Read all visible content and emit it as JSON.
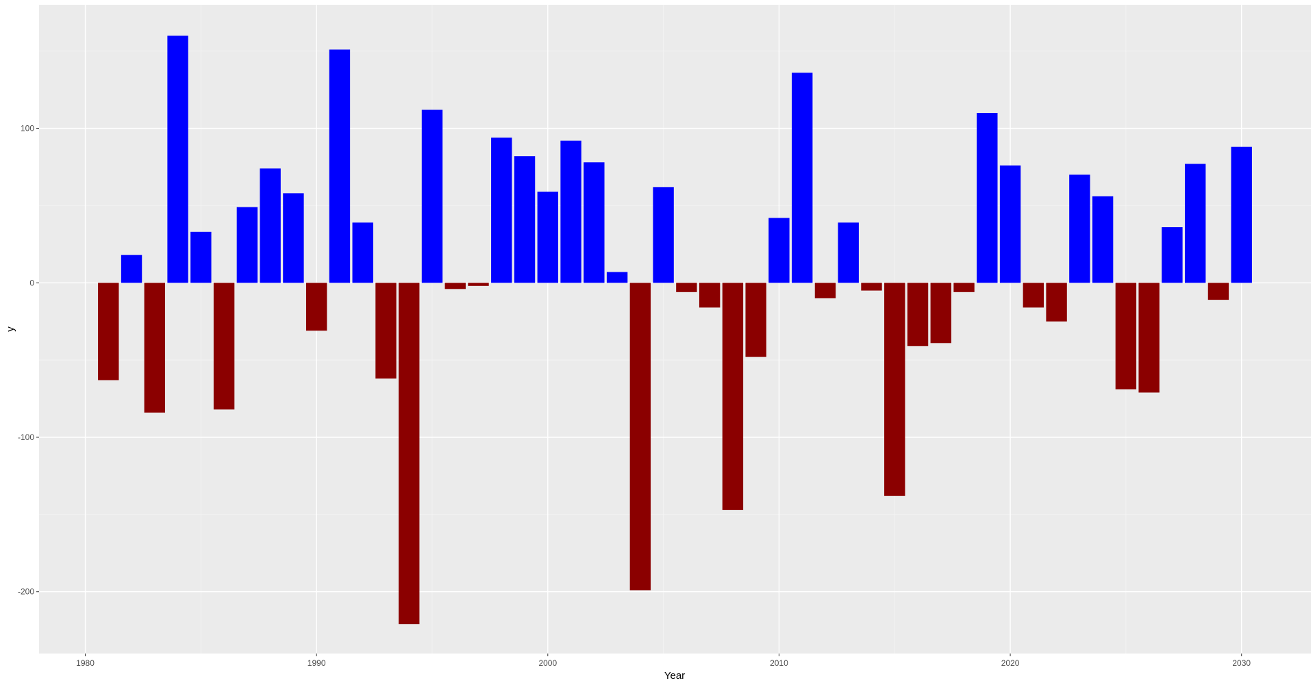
{
  "chart_data": {
    "type": "bar",
    "xlabel": "Year",
    "ylabel": "y",
    "xlim": [
      1978,
      2033
    ],
    "ylim": [
      -240,
      180
    ],
    "x_ticks": [
      1980,
      1990,
      2000,
      2010,
      2020,
      2030
    ],
    "y_ticks": [
      -200,
      -100,
      0,
      100
    ],
    "grid": true,
    "background": "#ebebeb",
    "positive_color": "#0000ff",
    "negative_color": "#8b0000",
    "x": [
      1981,
      1982,
      1983,
      1984,
      1985,
      1986,
      1987,
      1988,
      1989,
      1990,
      1991,
      1992,
      1993,
      1994,
      1995,
      1996,
      1997,
      1998,
      1999,
      2000,
      2001,
      2002,
      2003,
      2004,
      2005,
      2006,
      2007,
      2008,
      2009,
      2010,
      2011,
      2012,
      2013,
      2014,
      2015,
      2016,
      2017,
      2018,
      2019,
      2020,
      2021,
      2022,
      2023,
      2024,
      2025,
      2026,
      2027,
      2028,
      2029,
      2030
    ],
    "values": [
      -63,
      18,
      -84,
      160,
      33,
      -82,
      49,
      74,
      58,
      -31,
      151,
      39,
      -62,
      -221,
      112,
      -4,
      -2,
      94,
      82,
      59,
      92,
      78,
      7,
      -199,
      62,
      -6,
      -16,
      -147,
      -48,
      42,
      136,
      -10,
      39,
      -5,
      -138,
      -41,
      -39,
      -6,
      110,
      76,
      -16,
      -25,
      70,
      56,
      -69,
      -71,
      36,
      77,
      -11,
      88
    ]
  },
  "watermark": "https://blog.csdn.net/weixin_43208322"
}
